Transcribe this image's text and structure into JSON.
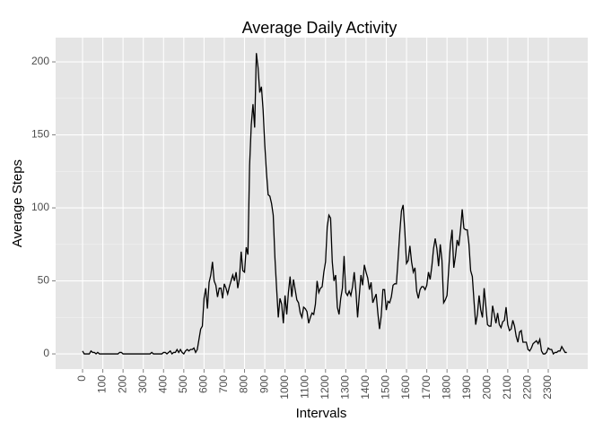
{
  "chart_data": {
    "type": "line",
    "title": "Average Daily Activity",
    "x_label": "Intervals",
    "y_label": "Average Steps",
    "categories": [
      "0",
      null,
      null,
      null,
      null,
      null,
      null,
      null,
      null,
      null,
      null,
      null,
      "100",
      null,
      null,
      null,
      null,
      null,
      null,
      null,
      null,
      null,
      null,
      null,
      "200",
      null,
      null,
      null,
      null,
      null,
      null,
      null,
      null,
      null,
      null,
      null,
      "300",
      null,
      null,
      null,
      null,
      null,
      null,
      null,
      null,
      null,
      null,
      null,
      "400",
      null,
      null,
      null,
      null,
      null,
      null,
      null,
      null,
      null,
      null,
      null,
      "500",
      null,
      null,
      null,
      null,
      null,
      null,
      null,
      null,
      null,
      null,
      null,
      "600",
      null,
      null,
      null,
      null,
      null,
      null,
      null,
      null,
      null,
      null,
      null,
      "700",
      null,
      null,
      null,
      null,
      null,
      null,
      null,
      null,
      null,
      null,
      null,
      "800",
      null,
      null,
      null,
      null,
      null,
      null,
      null,
      null,
      null,
      null,
      null,
      "900",
      null,
      null,
      null,
      null,
      null,
      null,
      null,
      null,
      null,
      null,
      null,
      "1000",
      null,
      null,
      null,
      null,
      null,
      null,
      null,
      null,
      null,
      null,
      null,
      "1100",
      null,
      null,
      null,
      null,
      null,
      null,
      null,
      null,
      null,
      null,
      null,
      "1200",
      null,
      null,
      null,
      null,
      null,
      null,
      null,
      null,
      null,
      null,
      null,
      "1300",
      null,
      null,
      null,
      null,
      null,
      null,
      null,
      null,
      null,
      null,
      null,
      "1400",
      null,
      null,
      null,
      null,
      null,
      null,
      null,
      null,
      null,
      null,
      null,
      "1500",
      null,
      null,
      null,
      null,
      null,
      null,
      null,
      null,
      null,
      null,
      null,
      "1600",
      null,
      null,
      null,
      null,
      null,
      null,
      null,
      null,
      null,
      null,
      null,
      "1700",
      null,
      null,
      null,
      null,
      null,
      null,
      null,
      null,
      null,
      null,
      null,
      "1800",
      null,
      null,
      null,
      null,
      null,
      null,
      null,
      null,
      null,
      null,
      null,
      "1900",
      null,
      null,
      null,
      null,
      null,
      null,
      null,
      null,
      null,
      null,
      null,
      "2000",
      null,
      null,
      null,
      null,
      null,
      null,
      null,
      null,
      null,
      null,
      null,
      "2100",
      null,
      null,
      null,
      null,
      null,
      null,
      null,
      null,
      null,
      null,
      null,
      "2200",
      null,
      null,
      null,
      null,
      null,
      null,
      null,
      null,
      null,
      null,
      null,
      "2300",
      null,
      null,
      null,
      null,
      null,
      null,
      null,
      null,
      null,
      null,
      null
    ],
    "values": [
      2,
      0,
      0,
      0,
      0,
      2,
      1,
      1,
      0,
      1,
      0,
      0,
      0,
      0,
      0,
      0,
      0,
      0,
      0,
      0,
      0,
      0,
      1,
      1,
      0,
      0,
      0,
      0,
      0,
      0,
      0,
      0,
      0,
      0,
      0,
      0,
      0,
      0,
      0,
      0,
      0,
      1,
      0,
      0,
      0,
      0,
      0,
      0,
      1,
      1,
      0,
      1,
      2,
      0,
      1,
      1,
      3,
      1,
      3,
      1,
      0,
      2,
      3,
      2,
      3,
      3,
      4,
      1,
      3,
      10,
      17,
      19,
      38,
      45,
      31,
      49,
      54,
      63,
      50,
      47,
      39,
      45,
      45,
      38,
      48,
      45,
      41,
      46,
      50,
      54,
      50,
      56,
      45,
      52,
      70,
      57,
      56,
      73,
      68,
      129,
      157,
      171,
      155,
      206,
      196,
      179,
      183,
      167,
      143,
      124,
      109,
      108,
      103,
      95,
      66,
      45,
      25,
      38,
      34,
      21,
      40,
      27,
      42,
      53,
      39,
      51,
      44,
      37,
      35,
      28,
      25,
      32,
      31,
      29,
      21,
      25,
      28,
      27,
      34,
      50,
      42,
      45,
      46,
      56,
      63,
      87,
      95,
      93,
      63,
      50,
      54,
      32,
      27,
      38,
      45,
      67,
      42,
      40,
      43,
      40,
      46,
      56,
      43,
      25,
      40,
      54,
      47,
      61,
      56,
      52,
      44,
      49,
      35,
      38,
      41,
      28,
      17,
      26,
      44,
      44,
      30,
      36,
      35,
      39,
      47,
      48,
      48,
      65,
      83,
      98,
      102,
      84,
      62,
      64,
      74,
      63,
      56,
      59,
      43,
      38,
      44,
      46,
      46,
      44,
      47,
      56,
      51,
      60,
      72,
      79,
      72,
      60,
      75,
      64,
      35,
      37,
      40,
      58,
      75,
      85,
      59,
      67,
      78,
      74,
      85,
      99,
      86,
      85,
      85,
      75,
      57,
      53,
      36,
      20,
      27,
      40,
      30,
      25,
      45,
      33,
      20,
      19,
      19,
      33,
      27,
      21,
      28,
      20,
      18,
      22,
      23,
      32,
      20,
      16,
      17,
      23,
      19,
      12,
      8,
      15,
      16,
      8,
      8,
      8,
      3,
      2,
      4,
      7,
      8,
      9,
      7,
      10,
      2,
      0,
      0,
      1,
      4,
      3,
      3,
      0,
      1,
      1,
      2,
      2,
      5,
      3,
      1,
      1
    ],
    "color": "#000000",
    "ylim": [
      -10.4,
      216.6
    ],
    "yticks": [
      0,
      50,
      100,
      150,
      200
    ],
    "yminor": [
      25,
      75,
      125,
      175
    ],
    "grid": true
  }
}
